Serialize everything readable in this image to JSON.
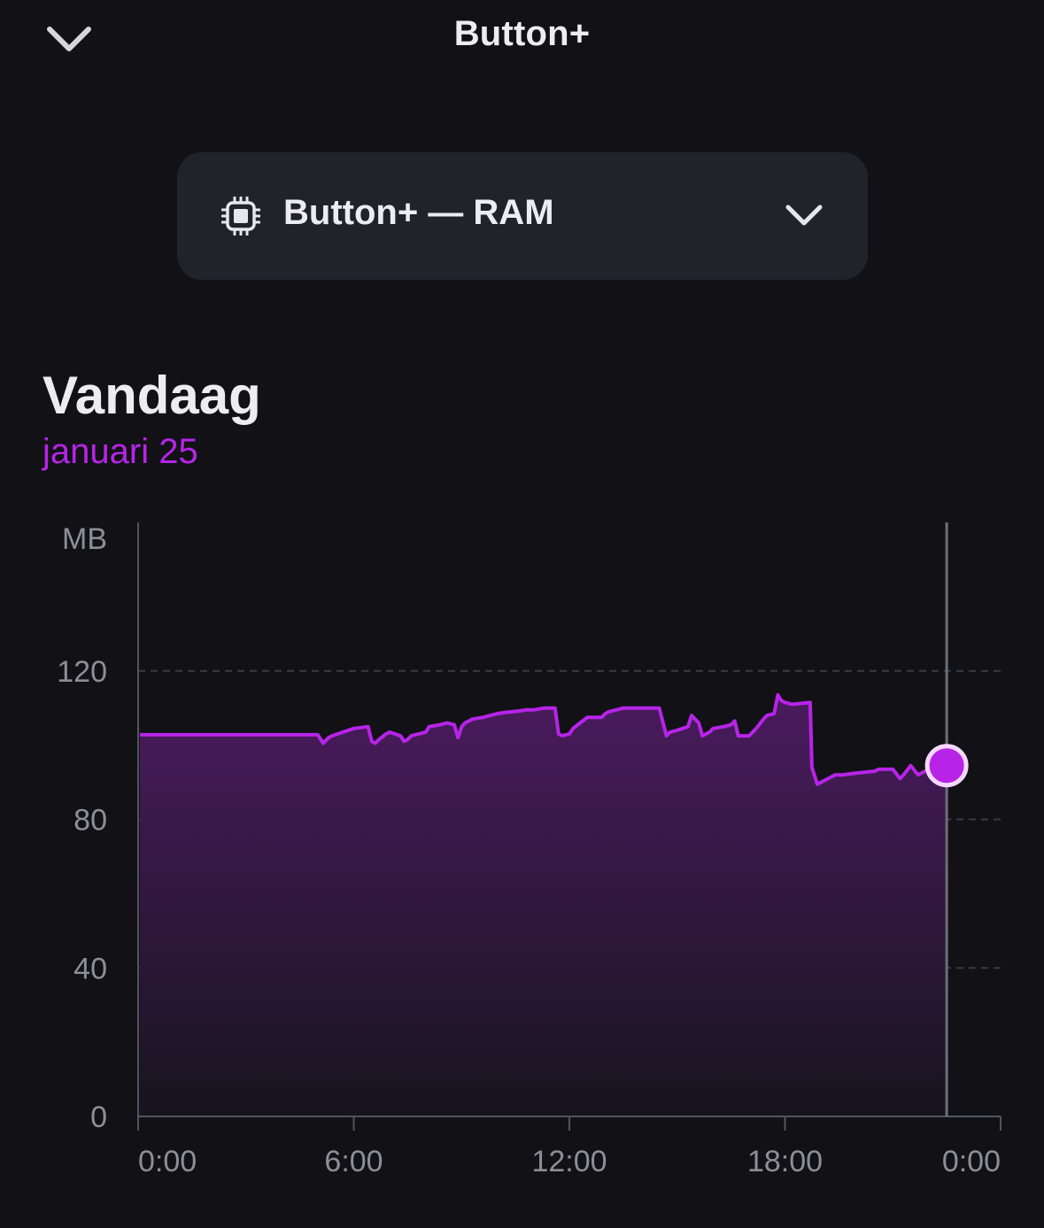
{
  "header": {
    "title": "Button+",
    "collapse_icon": "chevron-down-icon"
  },
  "selector": {
    "icon": "chip-icon",
    "label": "Button+ — RAM",
    "chevron_icon": "chevron-down-icon"
  },
  "period": {
    "heading": "Vandaag",
    "date": "januari 25"
  },
  "colors": {
    "accent": "#b724e8",
    "background": "#111116",
    "card": "#22222b"
  },
  "chart_data": {
    "type": "area",
    "ylabel": "MB",
    "ylim": [
      0,
      160
    ],
    "yticks": [
      {
        "value": 0,
        "label": "0"
      },
      {
        "value": 40,
        "label": "40"
      },
      {
        "value": 80,
        "label": "80"
      },
      {
        "value": 120,
        "label": "120"
      }
    ],
    "xlim": [
      0,
      24
    ],
    "xticks": [
      {
        "value": 0,
        "label": "0:00"
      },
      {
        "value": 6,
        "label": "6:00"
      },
      {
        "value": 12,
        "label": "12:00"
      },
      {
        "value": 18,
        "label": "18:00"
      },
      {
        "value": 24,
        "label": "0:00"
      }
    ],
    "grid": "horizontal-dashed",
    "current_time": 22.5,
    "series": [
      {
        "x": [
          0.05,
          5.0,
          5.15,
          5.3,
          5.4,
          5.7,
          6.0,
          6.4,
          6.5,
          6.6,
          6.7,
          6.9,
          7.0,
          7.3,
          7.4,
          7.5,
          7.6,
          7.8,
          8.0,
          8.1,
          8.4,
          8.6,
          8.8,
          8.9,
          9.0,
          9.1,
          9.3,
          9.6,
          9.8,
          10.0,
          10.2,
          10.4,
          10.6,
          10.8,
          11.0,
          11.3,
          11.6,
          11.7,
          11.8,
          12.0,
          12.1,
          12.3,
          12.5,
          12.9,
          13.0,
          13.1,
          13.5,
          14.0,
          14.5,
          14.7,
          14.8,
          15.0,
          15.3,
          15.4,
          15.6,
          15.7,
          15.9,
          16.0,
          16.3,
          16.5,
          16.6,
          16.7,
          17.0,
          17.2,
          17.4,
          17.5,
          17.7,
          17.8,
          17.9,
          18.0,
          18.2,
          18.7,
          18.75,
          18.9,
          19.0,
          19.2,
          19.4,
          19.6,
          20.0,
          20.5,
          20.6,
          21.0,
          21.2,
          21.3,
          21.5,
          21.7,
          22.0,
          22.3,
          22.5
        ],
        "y": [
          102.8,
          102.8,
          100.5,
          102.0,
          102.5,
          103.5,
          104.5,
          105.0,
          101.0,
          100.5,
          101.5,
          103.0,
          103.5,
          102.5,
          101.0,
          101.5,
          102.5,
          103.0,
          103.5,
          105.0,
          105.5,
          106.0,
          105.5,
          102.0,
          105.0,
          106.0,
          107.0,
          107.5,
          108.0,
          108.5,
          108.8,
          109.0,
          109.2,
          109.5,
          109.5,
          110.0,
          110.0,
          103.0,
          102.5,
          103.0,
          104.5,
          106.0,
          107.5,
          107.5,
          108.5,
          109.0,
          110.0,
          110.0,
          110.0,
          102.5,
          103.5,
          104.0,
          105.0,
          108.0,
          106.0,
          102.5,
          103.5,
          104.5,
          105.0,
          105.5,
          106.5,
          102.5,
          102.5,
          104.5,
          107.0,
          108.0,
          108.5,
          113.5,
          112.0,
          111.5,
          111.0,
          111.5,
          94.0,
          89.5,
          90.0,
          91.0,
          92.0,
          92.0,
          92.5,
          93.0,
          93.5,
          93.5,
          91.0,
          92.0,
          94.5,
          92.0,
          93.5,
          94.5,
          94.5
        ]
      }
    ]
  }
}
